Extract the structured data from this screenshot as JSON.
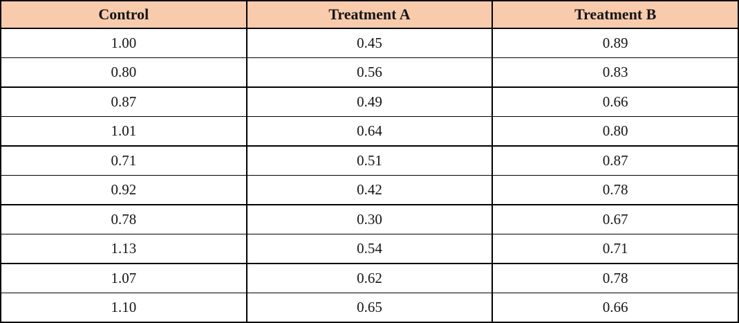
{
  "table": {
    "columns": [
      "Control",
      "Treatment A",
      "Treatment B"
    ],
    "rows": [
      [
        "1.00",
        "0.45",
        "0.89"
      ],
      [
        "0.80",
        "0.56",
        "0.83"
      ],
      [
        "0.87",
        "0.49",
        "0.66"
      ],
      [
        "1.01",
        "0.64",
        "0.80"
      ],
      [
        "0.71",
        "0.51",
        "0.87"
      ],
      [
        "0.92",
        "0.42",
        "0.78"
      ],
      [
        "0.78",
        "0.30",
        "0.67"
      ],
      [
        "1.13",
        "0.54",
        "0.71"
      ],
      [
        "1.07",
        "0.62",
        "0.78"
      ],
      [
        "1.10",
        "0.65",
        "0.66"
      ]
    ]
  },
  "colors": {
    "header_background": "#F8CBAD",
    "border": "#000000",
    "text": "#151515"
  },
  "chart_data": {
    "type": "table",
    "columns": [
      "Control",
      "Treatment A",
      "Treatment B"
    ],
    "series": [
      {
        "name": "Control",
        "values": [
          1.0,
          0.8,
          0.87,
          1.01,
          0.71,
          0.92,
          0.78,
          1.13,
          1.07,
          1.1
        ]
      },
      {
        "name": "Treatment A",
        "values": [
          0.45,
          0.56,
          0.49,
          0.64,
          0.51,
          0.42,
          0.3,
          0.54,
          0.62,
          0.65
        ]
      },
      {
        "name": "Treatment B",
        "values": [
          0.89,
          0.83,
          0.66,
          0.8,
          0.87,
          0.78,
          0.67,
          0.71,
          0.78,
          0.66
        ]
      }
    ],
    "title": "",
    "notes": "3-column, 10-row data table; header row shaded peach"
  }
}
